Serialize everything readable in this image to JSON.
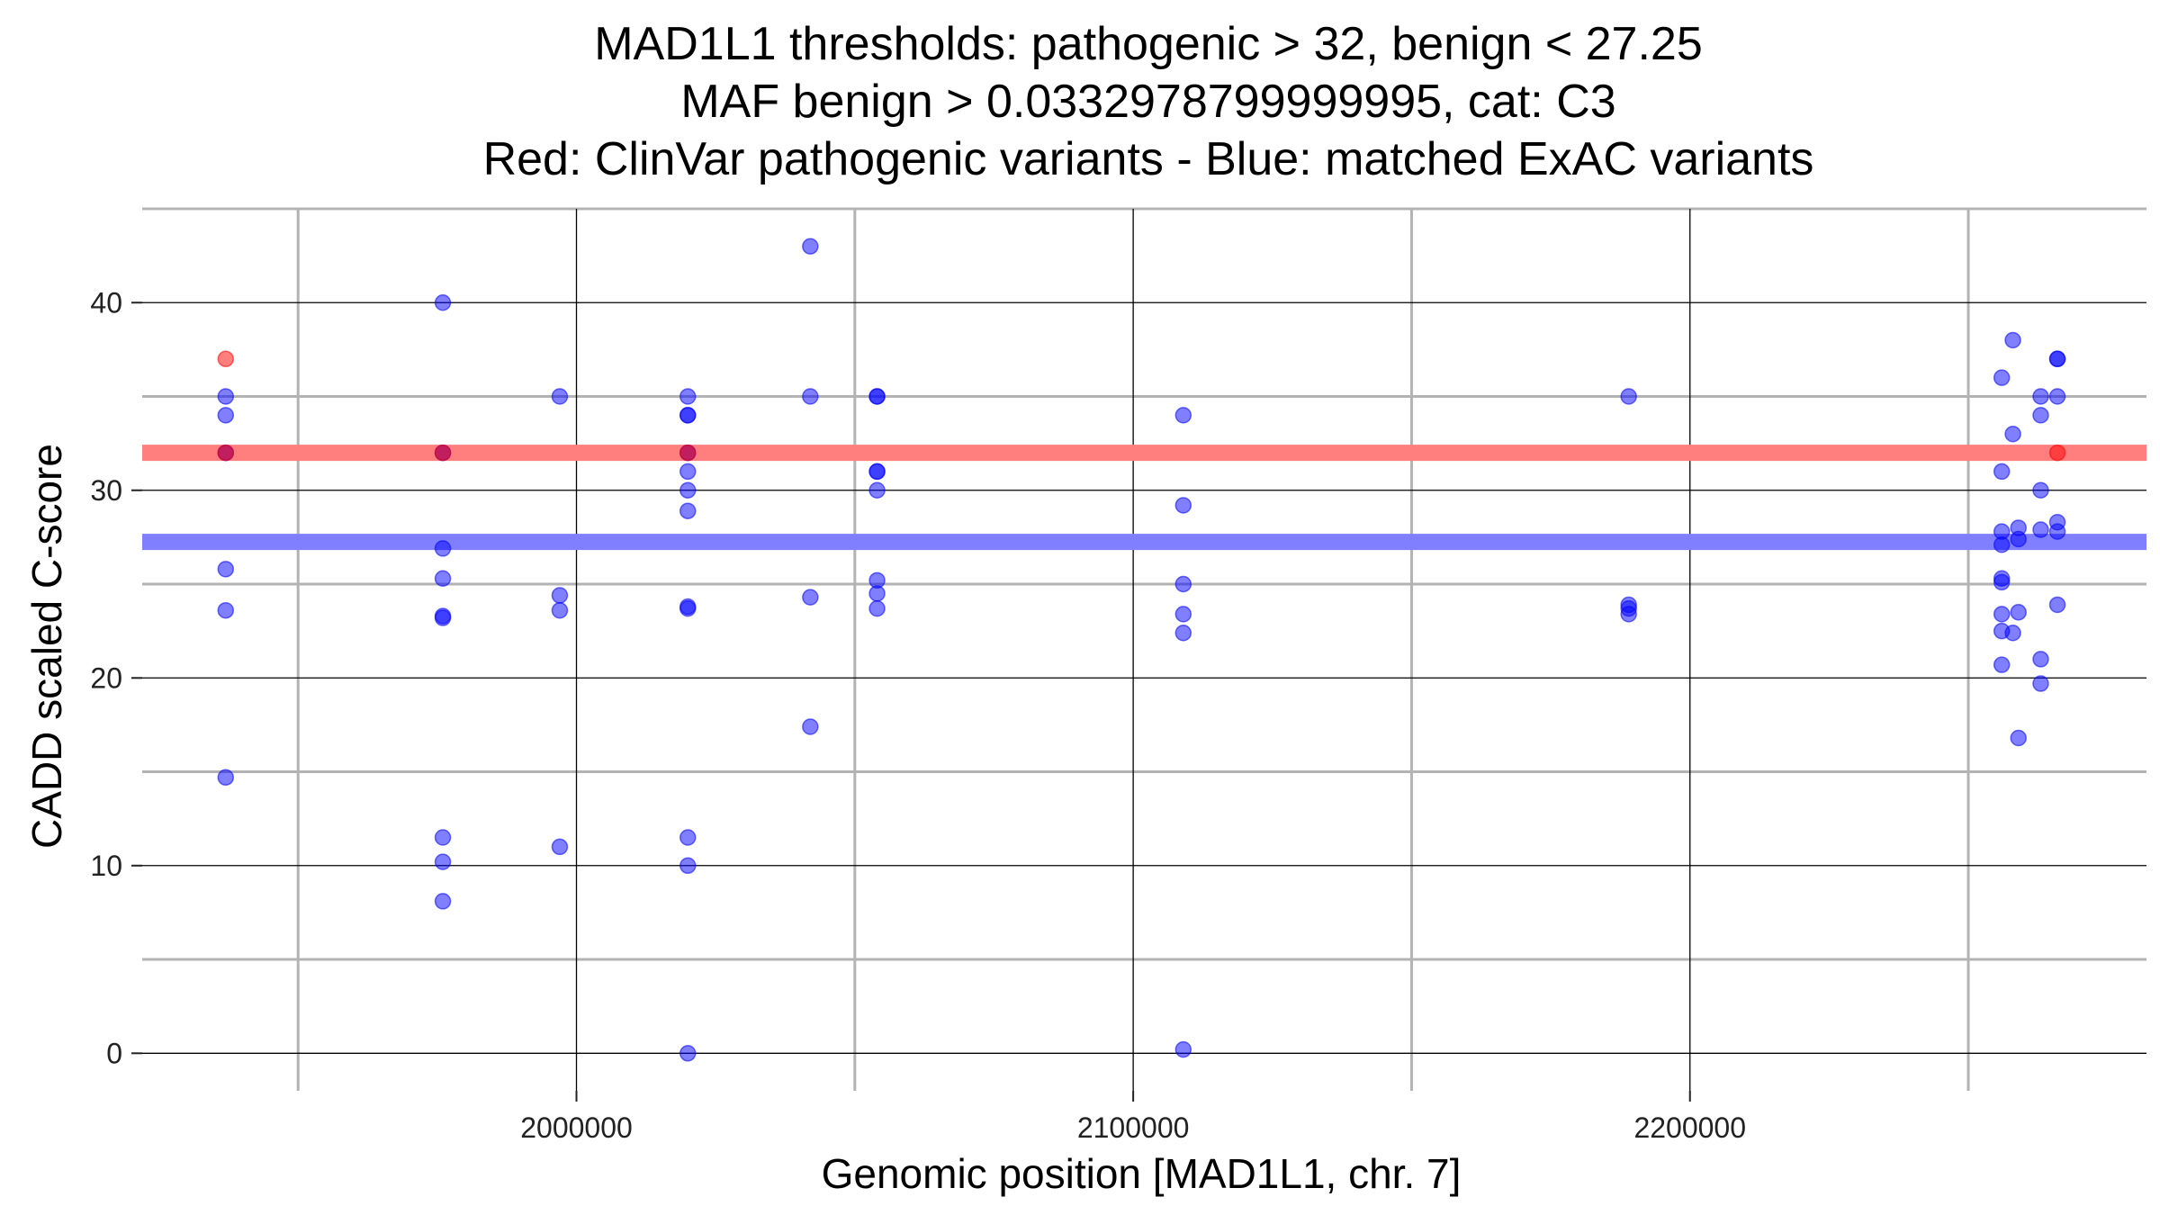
{
  "chart_data": {
    "type": "scatter",
    "title": [
      "MAD1L1 thresholds: pathogenic > 32, benign < 27.25",
      "MAF benign > 0.0332978799999995, cat: C3",
      "Red: ClinVar pathogenic variants - Blue: matched ExAC variants"
    ],
    "xlabel": "Genomic position [MAD1L1, chr. 7]",
    "ylabel": "CADD scaled C-score",
    "xlim": [
      1922000,
      2282000
    ],
    "ylim": [
      -2,
      45
    ],
    "x_ticks": [
      2000000,
      2100000,
      2200000
    ],
    "x_tick_labels": [
      "2000000",
      "2100000",
      "2200000"
    ],
    "y_ticks": [
      0,
      10,
      20,
      30,
      40
    ],
    "y_tick_labels": [
      "0",
      "10",
      "20",
      "30",
      "40"
    ],
    "x_minor_grid": [
      1950000,
      2050000,
      2150000,
      2250000
    ],
    "y_minor_grid": [
      5,
      15,
      25,
      35,
      45
    ],
    "thresholds": [
      {
        "name": "pathogenic",
        "value": 32,
        "color": "#ff7f7f"
      },
      {
        "name": "benign",
        "value": 27.25,
        "color": "#7f7fff"
      }
    ],
    "series": [
      {
        "name": "ClinVar pathogenic variants",
        "color": "#ff0000",
        "points": [
          [
            1937000,
            37
          ],
          [
            1937000,
            32
          ],
          [
            1976000,
            32
          ],
          [
            2020000,
            32
          ],
          [
            2266000,
            32
          ]
        ]
      },
      {
        "name": "matched ExAC variants",
        "color": "#0000ff",
        "points": [
          [
            1937000,
            35
          ],
          [
            1937000,
            34
          ],
          [
            1937000,
            32
          ],
          [
            1937000,
            25.8
          ],
          [
            1937000,
            23.6
          ],
          [
            1937000,
            14.7
          ],
          [
            1976000,
            40
          ],
          [
            1976000,
            32
          ],
          [
            1976000,
            26.9
          ],
          [
            1976000,
            25.3
          ],
          [
            1976000,
            23.3
          ],
          [
            1976000,
            23.2
          ],
          [
            1976000,
            11.5
          ],
          [
            1976000,
            10.2
          ],
          [
            1976000,
            8.1
          ],
          [
            1997000,
            35
          ],
          [
            1997000,
            24.4
          ],
          [
            1997000,
            23.6
          ],
          [
            1997000,
            11.0
          ],
          [
            2020000,
            35
          ],
          [
            2020000,
            34
          ],
          [
            2020000,
            34
          ],
          [
            2020000,
            32
          ],
          [
            2020000,
            31
          ],
          [
            2020000,
            30
          ],
          [
            2020000,
            28.9
          ],
          [
            2020000,
            23.8
          ],
          [
            2020000,
            23.7
          ],
          [
            2020000,
            11.5
          ],
          [
            2020000,
            10
          ],
          [
            2020000,
            0
          ],
          [
            2042000,
            43
          ],
          [
            2042000,
            35
          ],
          [
            2042000,
            24.3
          ],
          [
            2042000,
            17.4
          ],
          [
            2054000,
            35
          ],
          [
            2054000,
            35
          ],
          [
            2054000,
            31
          ],
          [
            2054000,
            31
          ],
          [
            2054000,
            30
          ],
          [
            2054000,
            25.2
          ],
          [
            2054000,
            24.5
          ],
          [
            2054000,
            23.7
          ],
          [
            2109000,
            34
          ],
          [
            2109000,
            29.2
          ],
          [
            2109000,
            25
          ],
          [
            2109000,
            23.4
          ],
          [
            2109000,
            22.4
          ],
          [
            2109000,
            0.2
          ],
          [
            2189000,
            35
          ],
          [
            2189000,
            23.9
          ],
          [
            2189000,
            23.7
          ],
          [
            2189000,
            23.4
          ],
          [
            2256000,
            36
          ],
          [
            2256000,
            31
          ],
          [
            2256000,
            27.8
          ],
          [
            2256000,
            27.1
          ],
          [
            2256000,
            25.3
          ],
          [
            2256000,
            25.1
          ],
          [
            2256000,
            23.4
          ],
          [
            2256000,
            22.5
          ],
          [
            2256000,
            20.7
          ],
          [
            2258000,
            38
          ],
          [
            2258000,
            33
          ],
          [
            2258000,
            22.4
          ],
          [
            2259000,
            28
          ],
          [
            2259000,
            27.4
          ],
          [
            2259000,
            23.5
          ],
          [
            2259000,
            16.8
          ],
          [
            2263000,
            35
          ],
          [
            2263000,
            34
          ],
          [
            2263000,
            30
          ],
          [
            2263000,
            27.9
          ],
          [
            2263000,
            21.0
          ],
          [
            2263000,
            19.7
          ],
          [
            2266000,
            37
          ],
          [
            2266000,
            37
          ],
          [
            2266000,
            35
          ],
          [
            2266000,
            28.3
          ],
          [
            2266000,
            27.8
          ],
          [
            2266000,
            23.9
          ]
        ]
      }
    ]
  }
}
